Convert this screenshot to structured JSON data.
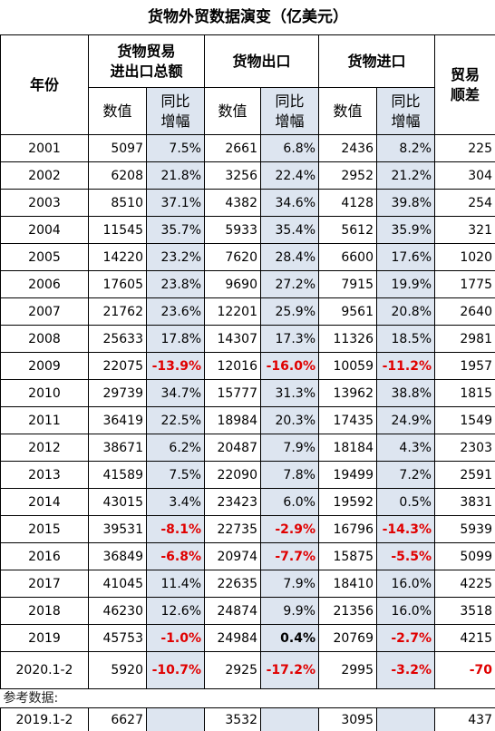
{
  "title": "货物外贸数据演变（亿美元）",
  "headers": {
    "year": "年份",
    "total_line1": "货物贸易",
    "total_line2": "进出口总额",
    "export": "货物出口",
    "import": "货物进口",
    "balance_line1": "贸易",
    "balance_line2": "顺差",
    "value": "数值",
    "yoy_line1": "同比",
    "yoy_line2": "增幅"
  },
  "rows": [
    {
      "year": "2001",
      "total": "5097",
      "total_yoy": "7.5%",
      "export": "2661",
      "export_yoy": "6.8%",
      "import": "2436",
      "import_yoy": "8.2%",
      "balance": "225"
    },
    {
      "year": "2002",
      "total": "6208",
      "total_yoy": "21.8%",
      "export": "3256",
      "export_yoy": "22.4%",
      "import": "2952",
      "import_yoy": "21.2%",
      "balance": "304"
    },
    {
      "year": "2003",
      "total": "8510",
      "total_yoy": "37.1%",
      "export": "4382",
      "export_yoy": "34.6%",
      "import": "4128",
      "import_yoy": "39.8%",
      "balance": "254"
    },
    {
      "year": "2004",
      "total": "11545",
      "total_yoy": "35.7%",
      "export": "5933",
      "export_yoy": "35.4%",
      "import": "5612",
      "import_yoy": "35.9%",
      "balance": "321"
    },
    {
      "year": "2005",
      "total": "14220",
      "total_yoy": "23.2%",
      "export": "7620",
      "export_yoy": "28.4%",
      "import": "6600",
      "import_yoy": "17.6%",
      "balance": "1020"
    },
    {
      "year": "2006",
      "total": "17605",
      "total_yoy": "23.8%",
      "export": "9690",
      "export_yoy": "27.2%",
      "import": "7915",
      "import_yoy": "19.9%",
      "balance": "1775"
    },
    {
      "year": "2007",
      "total": "21762",
      "total_yoy": "23.6%",
      "export": "12201",
      "export_yoy": "25.9%",
      "import": "9561",
      "import_yoy": "20.8%",
      "balance": "2640"
    },
    {
      "year": "2008",
      "total": "25633",
      "total_yoy": "17.8%",
      "export": "14307",
      "export_yoy": "17.3%",
      "import": "11326",
      "import_yoy": "18.5%",
      "balance": "2981"
    },
    {
      "year": "2009",
      "total": "22075",
      "total_yoy": "-13.9%",
      "export": "12016",
      "export_yoy": "-16.0%",
      "import": "10059",
      "import_yoy": "-11.2%",
      "balance": "1957"
    },
    {
      "year": "2010",
      "total": "29739",
      "total_yoy": "34.7%",
      "export": "15777",
      "export_yoy": "31.3%",
      "import": "13962",
      "import_yoy": "38.8%",
      "balance": "1815"
    },
    {
      "year": "2011",
      "total": "36419",
      "total_yoy": "22.5%",
      "export": "18984",
      "export_yoy": "20.3%",
      "import": "17435",
      "import_yoy": "24.9%",
      "balance": "1549"
    },
    {
      "year": "2012",
      "total": "38671",
      "total_yoy": "6.2%",
      "export": "20487",
      "export_yoy": "7.9%",
      "import": "18184",
      "import_yoy": "4.3%",
      "balance": "2303"
    },
    {
      "year": "2013",
      "total": "41589",
      "total_yoy": "7.5%",
      "export": "22090",
      "export_yoy": "7.8%",
      "import": "19499",
      "import_yoy": "7.2%",
      "balance": "2591"
    },
    {
      "year": "2014",
      "total": "43015",
      "total_yoy": "3.4%",
      "export": "23423",
      "export_yoy": "6.0%",
      "import": "19592",
      "import_yoy": "0.5%",
      "balance": "3831"
    },
    {
      "year": "2015",
      "total": "39531",
      "total_yoy": "-8.1%",
      "export": "22735",
      "export_yoy": "-2.9%",
      "import": "16796",
      "import_yoy": "-14.3%",
      "balance": "5939"
    },
    {
      "year": "2016",
      "total": "36849",
      "total_yoy": "-6.8%",
      "export": "20974",
      "export_yoy": "-7.7%",
      "import": "15875",
      "import_yoy": "-5.5%",
      "balance": "5099"
    },
    {
      "year": "2017",
      "total": "41045",
      "total_yoy": "11.4%",
      "export": "22635",
      "export_yoy": "7.9%",
      "import": "18410",
      "import_yoy": "16.0%",
      "balance": "4225"
    },
    {
      "year": "2018",
      "total": "46230",
      "total_yoy": "12.6%",
      "export": "24874",
      "export_yoy": "9.9%",
      "import": "21356",
      "import_yoy": "16.0%",
      "balance": "3518"
    },
    {
      "year": "2019",
      "total": "45753",
      "total_yoy": "-1.0%",
      "export": "24984",
      "export_yoy": "0.4%",
      "import": "20769",
      "import_yoy": "-2.7%",
      "balance": "4215"
    }
  ],
  "row_2020": {
    "year": "2020.1-2",
    "total": "5920",
    "total_yoy": "-10.7%",
    "export": "2925",
    "export_yoy": "-17.2%",
    "import": "2995",
    "import_yoy": "-3.2%",
    "balance": "-70"
  },
  "reference_label": "参考数据:",
  "reference_row": {
    "year": "2019.1-2",
    "total": "6627",
    "total_yoy": "",
    "export": "3532",
    "export_yoy": "",
    "import": "3095",
    "import_yoy": "",
    "balance": "437"
  },
  "colors": {
    "shade": "#dde5f0",
    "negative": "#e00000",
    "border": "#000000"
  }
}
